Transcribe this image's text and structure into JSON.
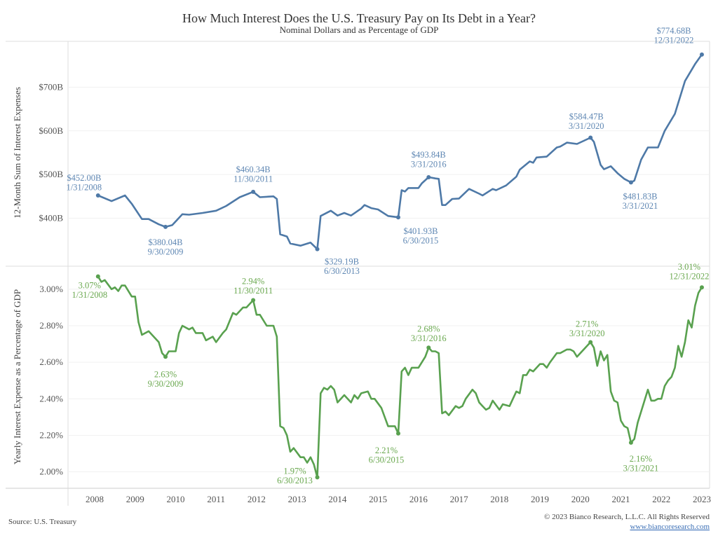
{
  "chart_data": [
    {
      "type": "line",
      "title": "How Much Interest Does the U.S. Treasury Pay on Its Debt in a Year?",
      "subtitle": "Nominal Dollars and as Percentage of GDP",
      "ylabel": "12-Month Sum of Interest Expenses",
      "yticks": [
        "$400B",
        "$500B",
        "$600B",
        "$700B"
      ],
      "ytick_values": [
        400,
        500,
        600,
        700
      ],
      "ylim": [
        290,
        805
      ],
      "xlim": [
        "2008-01",
        "2023-01"
      ],
      "grid": true,
      "color": "#4e79a7",
      "points": [
        [
          "2008-01",
          452
        ],
        [
          "2008-05",
          439
        ],
        [
          "2008-09",
          452
        ],
        [
          "2008-11",
          433
        ],
        [
          "2009-02",
          398
        ],
        [
          "2009-04",
          398
        ],
        [
          "2009-07",
          386
        ],
        [
          "2009-09",
          380.04
        ],
        [
          "2009-11",
          384
        ],
        [
          "2010-02",
          409
        ],
        [
          "2010-04",
          408
        ],
        [
          "2010-08",
          412
        ],
        [
          "2010-12",
          417
        ],
        [
          "2011-03",
          428
        ],
        [
          "2011-07",
          448
        ],
        [
          "2011-11",
          460.34
        ],
        [
          "2012-01",
          448
        ],
        [
          "2012-05",
          450
        ],
        [
          "2012-06",
          444
        ],
        [
          "2012-07",
          363
        ],
        [
          "2012-09",
          358
        ],
        [
          "2012-10",
          342
        ],
        [
          "2013-01",
          337
        ],
        [
          "2013-04",
          344
        ],
        [
          "2013-06",
          329.19
        ],
        [
          "2013-07",
          405
        ],
        [
          "2013-10",
          417
        ],
        [
          "2013-12",
          406
        ],
        [
          "2014-02",
          412
        ],
        [
          "2014-04",
          406
        ],
        [
          "2014-07",
          422
        ],
        [
          "2014-08",
          430
        ],
        [
          "2014-10",
          423
        ],
        [
          "2014-12",
          420
        ],
        [
          "2015-03",
          405
        ],
        [
          "2015-06",
          401.93
        ],
        [
          "2015-07",
          464
        ],
        [
          "2015-08",
          461
        ],
        [
          "2015-09",
          469
        ],
        [
          "2015-12",
          469
        ],
        [
          "2016-01",
          480
        ],
        [
          "2016-03",
          493.84
        ],
        [
          "2016-05",
          491
        ],
        [
          "2016-06",
          490
        ],
        [
          "2016-07",
          430
        ],
        [
          "2016-08",
          430
        ],
        [
          "2016-10",
          444
        ],
        [
          "2016-12",
          445
        ],
        [
          "2017-03",
          467
        ],
        [
          "2017-06",
          456
        ],
        [
          "2017-07",
          452
        ],
        [
          "2017-10",
          467
        ],
        [
          "2017-11",
          464
        ],
        [
          "2018-02",
          475
        ],
        [
          "2018-05",
          495
        ],
        [
          "2018-06",
          511
        ],
        [
          "2018-09",
          530
        ],
        [
          "2018-10",
          527
        ],
        [
          "2018-11",
          539
        ],
        [
          "2019-02",
          541
        ],
        [
          "2019-05",
          562
        ],
        [
          "2019-06",
          564
        ],
        [
          "2019-08",
          573
        ],
        [
          "2019-11",
          570
        ],
        [
          "2020-03",
          584.47
        ],
        [
          "2020-04",
          575
        ],
        [
          "2020-06",
          522
        ],
        [
          "2020-07",
          512
        ],
        [
          "2020-09",
          519
        ],
        [
          "2020-11",
          503
        ],
        [
          "2021-01",
          490
        ],
        [
          "2021-03",
          481.83
        ],
        [
          "2021-04",
          486
        ],
        [
          "2021-06",
          534
        ],
        [
          "2021-08",
          562
        ],
        [
          "2021-11",
          562
        ],
        [
          "2022-01",
          600
        ],
        [
          "2022-04",
          639
        ],
        [
          "2022-05",
          664
        ],
        [
          "2022-07",
          714
        ],
        [
          "2022-10",
          753
        ],
        [
          "2022-12",
          774.68
        ]
      ],
      "annotations": [
        {
          "value": "$452.00B",
          "date": "1/31/2008"
        },
        {
          "value": "$380.04B",
          "date": "9/30/2009"
        },
        {
          "value": "$460.34B",
          "date": "11/30/2011"
        },
        {
          "value": "$329.19B",
          "date": "6/30/2013"
        },
        {
          "value": "$401.93B",
          "date": "6/30/2015"
        },
        {
          "value": "$493.84B",
          "date": "3/31/2016"
        },
        {
          "value": "$584.47B",
          "date": "3/31/2020"
        },
        {
          "value": "$481.83B",
          "date": "3/31/2021"
        },
        {
          "value": "$774.68B",
          "date": "12/31/2022"
        }
      ]
    },
    {
      "type": "line",
      "ylabel": "Yearly Interest Expense as a Percentage of GDP",
      "yticks": [
        "2.00%",
        "2.20%",
        "2.40%",
        "2.60%",
        "2.80%",
        "3.00%"
      ],
      "ytick_values": [
        2.0,
        2.2,
        2.4,
        2.6,
        2.8,
        3.0
      ],
      "ylim": [
        1.91,
        3.126
      ],
      "xticks": [
        "2008",
        "2009",
        "2010",
        "2011",
        "2012",
        "2013",
        "2014",
        "2015",
        "2016",
        "2017",
        "2018",
        "2019",
        "2020",
        "2021",
        "2022",
        "2023"
      ],
      "grid": true,
      "color": "#59a14f",
      "points": [
        [
          "2008-01",
          3.07
        ],
        [
          "2008-02",
          3.04
        ],
        [
          "2008-03",
          3.05
        ],
        [
          "2008-05",
          3.0
        ],
        [
          "2008-06",
          3.01
        ],
        [
          "2008-07",
          2.99
        ],
        [
          "2008-08",
          3.02
        ],
        [
          "2008-09",
          3.02
        ],
        [
          "2008-11",
          2.96
        ],
        [
          "2008-12",
          2.96
        ],
        [
          "2009-01",
          2.82
        ],
        [
          "2009-02",
          2.75
        ],
        [
          "2009-04",
          2.77
        ],
        [
          "2009-07",
          2.71
        ],
        [
          "2009-08",
          2.65
        ],
        [
          "2009-09",
          2.63
        ],
        [
          "2009-10",
          2.66
        ],
        [
          "2009-12",
          2.66
        ],
        [
          "2010-01",
          2.76
        ],
        [
          "2010-02",
          2.8
        ],
        [
          "2010-04",
          2.78
        ],
        [
          "2010-05",
          2.79
        ],
        [
          "2010-06",
          2.76
        ],
        [
          "2010-08",
          2.76
        ],
        [
          "2010-09",
          2.72
        ],
        [
          "2010-11",
          2.74
        ],
        [
          "2010-12",
          2.71
        ],
        [
          "2011-02",
          2.76
        ],
        [
          "2011-03",
          2.78
        ],
        [
          "2011-05",
          2.87
        ],
        [
          "2011-06",
          2.86
        ],
        [
          "2011-08",
          2.9
        ],
        [
          "2011-09",
          2.9
        ],
        [
          "2011-11",
          2.94
        ],
        [
          "2011-12",
          2.86
        ],
        [
          "2012-01",
          2.86
        ],
        [
          "2012-03",
          2.8
        ],
        [
          "2012-05",
          2.8
        ],
        [
          "2012-06",
          2.74
        ],
        [
          "2012-07",
          2.25
        ],
        [
          "2012-08",
          2.24
        ],
        [
          "2012-09",
          2.2
        ],
        [
          "2012-10",
          2.11
        ],
        [
          "2012-11",
          2.13
        ],
        [
          "2013-01",
          2.08
        ],
        [
          "2013-02",
          2.08
        ],
        [
          "2013-03",
          2.05
        ],
        [
          "2013-04",
          2.08
        ],
        [
          "2013-05",
          2.04
        ],
        [
          "2013-06",
          1.97
        ],
        [
          "2013-07",
          2.43
        ],
        [
          "2013-08",
          2.46
        ],
        [
          "2013-09",
          2.45
        ],
        [
          "2013-10",
          2.47
        ],
        [
          "2013-11",
          2.45
        ],
        [
          "2013-12",
          2.38
        ],
        [
          "2014-01",
          2.4
        ],
        [
          "2014-02",
          2.42
        ],
        [
          "2014-03",
          2.4
        ],
        [
          "2014-04",
          2.38
        ],
        [
          "2014-05",
          2.42
        ],
        [
          "2014-06",
          2.4
        ],
        [
          "2014-07",
          2.43
        ],
        [
          "2014-09",
          2.44
        ],
        [
          "2014-10",
          2.4
        ],
        [
          "2014-11",
          2.4
        ],
        [
          "2015-01",
          2.35
        ],
        [
          "2015-03",
          2.25
        ],
        [
          "2015-05",
          2.25
        ],
        [
          "2015-06",
          2.21
        ],
        [
          "2015-07",
          2.55
        ],
        [
          "2015-08",
          2.57
        ],
        [
          "2015-09",
          2.53
        ],
        [
          "2015-10",
          2.57
        ],
        [
          "2015-12",
          2.57
        ],
        [
          "2016-02",
          2.63
        ],
        [
          "2016-03",
          2.68
        ],
        [
          "2016-04",
          2.66
        ],
        [
          "2016-05",
          2.66
        ],
        [
          "2016-06",
          2.65
        ],
        [
          "2016-07",
          2.32
        ],
        [
          "2016-08",
          2.33
        ],
        [
          "2016-09",
          2.31
        ],
        [
          "2016-11",
          2.36
        ],
        [
          "2016-12",
          2.35
        ],
        [
          "2017-01",
          2.36
        ],
        [
          "2017-02",
          2.4
        ],
        [
          "2017-04",
          2.45
        ],
        [
          "2017-05",
          2.43
        ],
        [
          "2017-06",
          2.38
        ],
        [
          "2017-07",
          2.36
        ],
        [
          "2017-08",
          2.34
        ],
        [
          "2017-09",
          2.35
        ],
        [
          "2017-10",
          2.39
        ],
        [
          "2017-12",
          2.34
        ],
        [
          "2018-01",
          2.37
        ],
        [
          "2018-03",
          2.36
        ],
        [
          "2018-05",
          2.44
        ],
        [
          "2018-06",
          2.43
        ],
        [
          "2018-07",
          2.53
        ],
        [
          "2018-08",
          2.53
        ],
        [
          "2018-09",
          2.56
        ],
        [
          "2018-10",
          2.55
        ],
        [
          "2018-12",
          2.59
        ],
        [
          "2019-01",
          2.59
        ],
        [
          "2019-02",
          2.57
        ],
        [
          "2019-03",
          2.6
        ],
        [
          "2019-05",
          2.65
        ],
        [
          "2019-06",
          2.65
        ],
        [
          "2019-08",
          2.67
        ],
        [
          "2019-09",
          2.67
        ],
        [
          "2019-10",
          2.66
        ],
        [
          "2019-11",
          2.63
        ],
        [
          "2020-03",
          2.71
        ],
        [
          "2020-04",
          2.68
        ],
        [
          "2020-05",
          2.58
        ],
        [
          "2020-06",
          2.66
        ],
        [
          "2020-07",
          2.61
        ],
        [
          "2020-08",
          2.64
        ],
        [
          "2020-09",
          2.44
        ],
        [
          "2020-10",
          2.39
        ],
        [
          "2020-11",
          2.38
        ],
        [
          "2020-12",
          2.28
        ],
        [
          "2021-01",
          2.25
        ],
        [
          "2021-02",
          2.24
        ],
        [
          "2021-03",
          2.16
        ],
        [
          "2021-04",
          2.18
        ],
        [
          "2021-05",
          2.27
        ],
        [
          "2021-07",
          2.39
        ],
        [
          "2021-08",
          2.45
        ],
        [
          "2021-09",
          2.39
        ],
        [
          "2021-10",
          2.39
        ],
        [
          "2021-11",
          2.4
        ],
        [
          "2021-12",
          2.4
        ],
        [
          "2022-01",
          2.47
        ],
        [
          "2022-02",
          2.5
        ],
        [
          "2022-03",
          2.52
        ],
        [
          "2022-04",
          2.57
        ],
        [
          "2022-05",
          2.69
        ],
        [
          "2022-06",
          2.63
        ],
        [
          "2022-07",
          2.71
        ],
        [
          "2022-08",
          2.83
        ],
        [
          "2022-09",
          2.79
        ],
        [
          "2022-10",
          2.91
        ],
        [
          "2022-11",
          2.98
        ],
        [
          "2022-12",
          3.01
        ]
      ],
      "annotations": [
        {
          "value": "3.07%",
          "date": "1/31/2008"
        },
        {
          "value": "2.63%",
          "date": "9/30/2009"
        },
        {
          "value": "2.94%",
          "date": "11/30/2011"
        },
        {
          "value": "1.97%",
          "date": "6/30/2013"
        },
        {
          "value": "2.21%",
          "date": "6/30/2015"
        },
        {
          "value": "2.68%",
          "date": "3/31/2016"
        },
        {
          "value": "2.71%",
          "date": "3/31/2020"
        },
        {
          "value": "2.16%",
          "date": "3/31/2021"
        },
        {
          "value": "3.01%",
          "date": "12/31/2022"
        }
      ]
    }
  ],
  "footer": {
    "source": "Source: U.S. Treasury",
    "copyright": "© 2023 Bianco Research, L.L.C. All Rights Reserved",
    "website": "www.biancoresearch.com"
  }
}
